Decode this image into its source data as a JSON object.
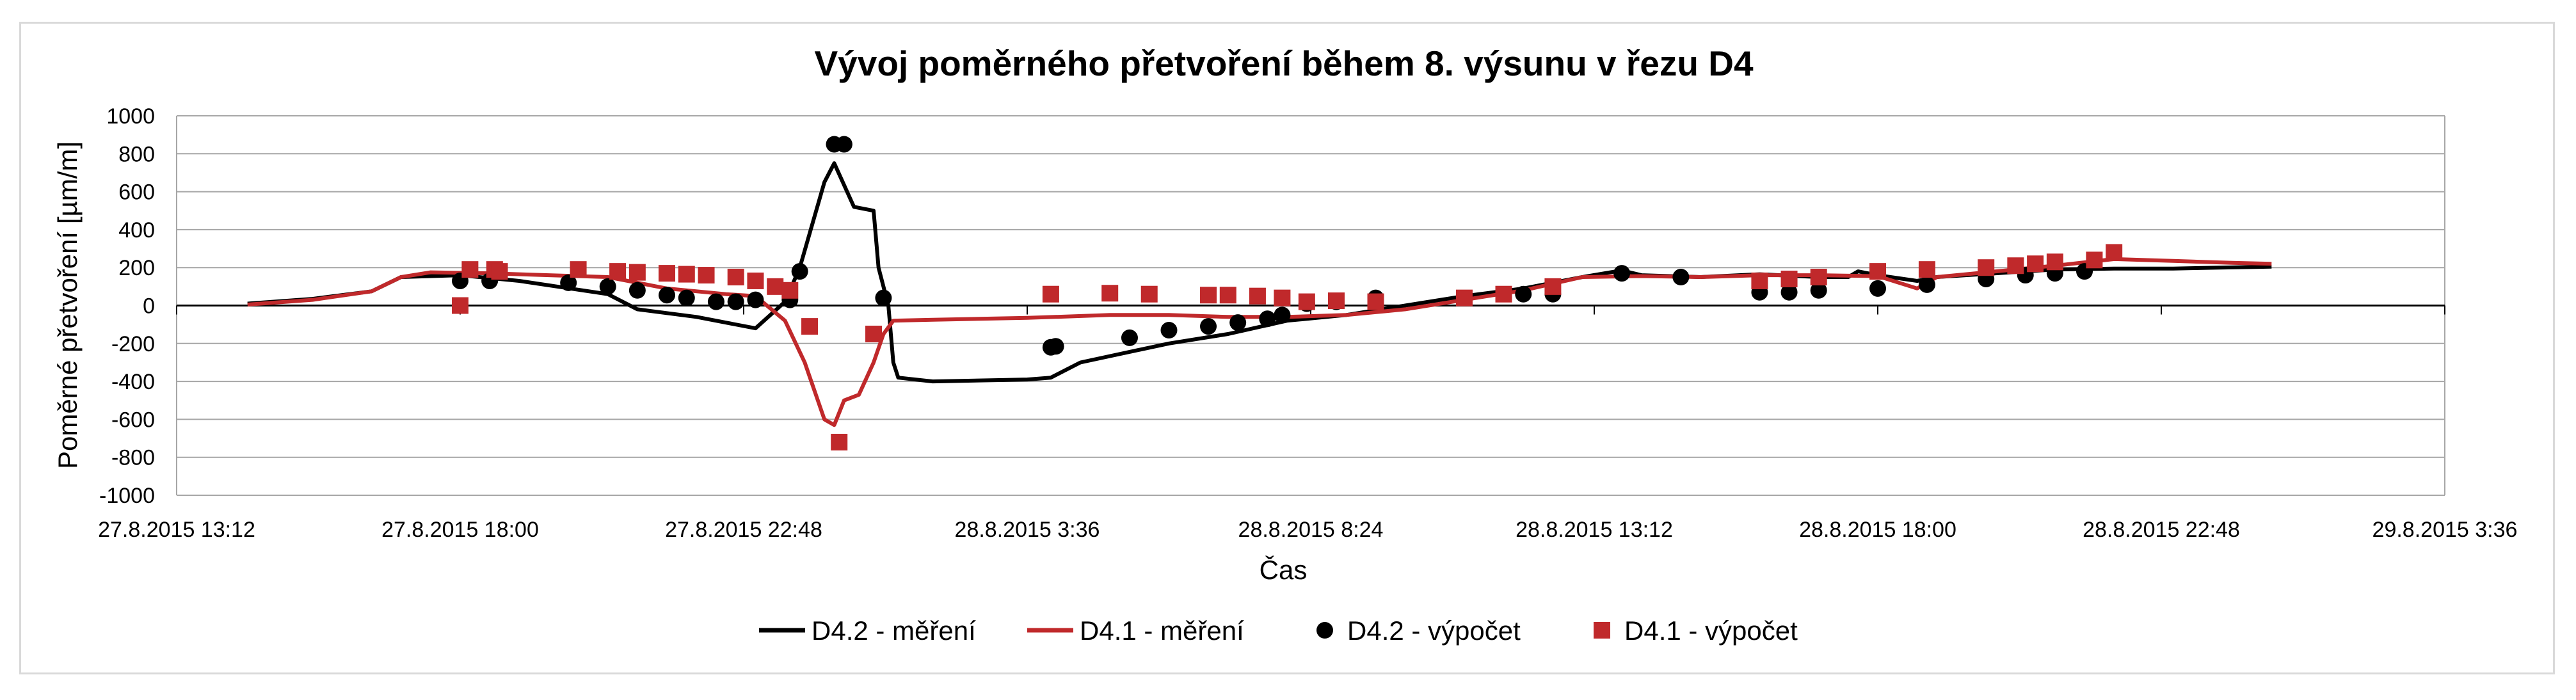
{
  "chart_data": {
    "type": "line",
    "title": "Vývoj poměrného přetvoření během 8. výsunu v řezu D4",
    "xlabel": "Čas",
    "ylabel": "Poměrné přetvoření [µm/m]",
    "x_axis": {
      "type": "time",
      "min": "27.8.2015 13:12",
      "max": "29.8.2015 3:36",
      "tick_labels": [
        "27.8.2015 13:12",
        "27.8.2015 18:00",
        "27.8.2015 22:48",
        "28.8.2015 3:36",
        "28.8.2015 8:24",
        "28.8.2015 13:12",
        "28.8.2015 18:00",
        "28.8.2015 22:48",
        "29.8.2015 3:36"
      ]
    },
    "y_axis": {
      "min": -1000,
      "max": 1000,
      "step": 200,
      "tick_labels": [
        "1000",
        "800",
        "600",
        "400",
        "200",
        "0",
        "-200",
        "-400",
        "-600",
        "-800",
        "-1000"
      ]
    },
    "grid": "horizontal",
    "legend_position": "bottom",
    "series": [
      {
        "name": "D4.2 - měření",
        "kind": "line",
        "color": "#000000",
        "points": [
          [
            "27.8.2015 14:24",
            10
          ],
          [
            "27.8.2015 15:30",
            35
          ],
          [
            "27.8.2015 16:30",
            75
          ],
          [
            "27.8.2015 17:00",
            150
          ],
          [
            "27.8.2015 18:00",
            160
          ],
          [
            "27.8.2015 19:00",
            130
          ],
          [
            "27.8.2015 20:30",
            60
          ],
          [
            "27.8.2015 21:00",
            -20
          ],
          [
            "27.8.2015 22:00",
            -60
          ],
          [
            "27.8.2015 23:00",
            -120
          ],
          [
            "27.8.2015 23:30",
            20
          ],
          [
            "27.8.2015 23:45",
            200
          ],
          [
            "28.8.2015 0:10",
            650
          ],
          [
            "28.8.2015 0:20",
            750
          ],
          [
            "28.8.2015 0:40",
            520
          ],
          [
            "28.8.2015 1:00",
            500
          ],
          [
            "28.8.2015 1:05",
            200
          ],
          [
            "28.8.2015 1:15",
            0
          ],
          [
            "28.8.2015 1:20",
            -300
          ],
          [
            "28.8.2015 1:25",
            -380
          ],
          [
            "28.8.2015 2:00",
            -400
          ],
          [
            "28.8.2015 3:36",
            -390
          ],
          [
            "28.8.2015 4:00",
            -380
          ],
          [
            "28.8.2015 4:30",
            -300
          ],
          [
            "28.8.2015 6:00",
            -200
          ],
          [
            "28.8.2015 7:00",
            -150
          ],
          [
            "28.8.2015 8:00",
            -80
          ],
          [
            "28.8.2015 9:00",
            -50
          ],
          [
            "28.8.2015 10:00",
            0
          ],
          [
            "28.8.2015 11:00",
            50
          ],
          [
            "28.8.2015 12:00",
            90
          ],
          [
            "28.8.2015 13:00",
            150
          ],
          [
            "28.8.2015 13:40",
            185
          ],
          [
            "28.8.2015 14:00",
            160
          ],
          [
            "28.8.2015 15:00",
            150
          ],
          [
            "28.8.2015 16:00",
            165
          ],
          [
            "28.8.2015 17:00",
            150
          ],
          [
            "28.8.2015 17:30",
            150
          ],
          [
            "28.8.2015 17:40",
            180
          ],
          [
            "28.8.2015 18:00",
            160
          ],
          [
            "28.8.2015 18:40",
            130
          ],
          [
            "28.8.2015 19:00",
            150
          ],
          [
            "28.8.2015 20:00",
            170
          ],
          [
            "28.8.2015 21:00",
            190
          ],
          [
            "28.8.2015 22:00",
            195
          ],
          [
            "28.8.2015 23:00",
            195
          ],
          [
            "28.8.2015 23:30",
            198
          ],
          [
            "29.8.2015 0:40",
            205
          ]
        ]
      },
      {
        "name": "D4.1 - měření",
        "kind": "line",
        "color": "#c0292b",
        "points": [
          [
            "27.8.2015 14:24",
            5
          ],
          [
            "27.8.2015 15:30",
            30
          ],
          [
            "27.8.2015 16:30",
            75
          ],
          [
            "27.8.2015 17:00",
            150
          ],
          [
            "27.8.2015 17:30",
            175
          ],
          [
            "27.8.2015 18:30",
            170
          ],
          [
            "27.8.2015 19:30",
            160
          ],
          [
            "27.8.2015 20:30",
            150
          ],
          [
            "27.8.2015 21:30",
            90
          ],
          [
            "27.8.2015 22:30",
            60
          ],
          [
            "27.8.2015 23:00",
            50
          ],
          [
            "27.8.2015 23:30",
            -80
          ],
          [
            "27.8.2015 23:50",
            -300
          ],
          [
            "28.8.2015 0:10",
            -600
          ],
          [
            "28.8.2015 0:20",
            -630
          ],
          [
            "28.8.2015 0:30",
            -500
          ],
          [
            "28.8.2015 0:45",
            -470
          ],
          [
            "28.8.2015 1:00",
            -300
          ],
          [
            "28.8.2015 1:10",
            -150
          ],
          [
            "28.8.2015 1:20",
            -80
          ],
          [
            "28.8.2015 2:00",
            -75
          ],
          [
            "28.8.2015 3:36",
            -65
          ],
          [
            "28.8.2015 5:00",
            -50
          ],
          [
            "28.8.2015 6:00",
            -50
          ],
          [
            "28.8.2015 7:00",
            -60
          ],
          [
            "28.8.2015 8:00",
            -60
          ],
          [
            "28.8.2015 9:00",
            -50
          ],
          [
            "28.8.2015 10:00",
            -20
          ],
          [
            "28.8.2015 11:00",
            30
          ],
          [
            "28.8.2015 12:00",
            80
          ],
          [
            "28.8.2015 13:00",
            150
          ],
          [
            "28.8.2015 14:00",
            155
          ],
          [
            "28.8.2015 15:00",
            150
          ],
          [
            "28.8.2015 16:00",
            160
          ],
          [
            "28.8.2015 17:00",
            160
          ],
          [
            "28.8.2015 18:00",
            155
          ],
          [
            "28.8.2015 18:40",
            90
          ],
          [
            "28.8.2015 19:00",
            150
          ],
          [
            "28.8.2015 20:00",
            180
          ],
          [
            "28.8.2015 21:00",
            210
          ],
          [
            "28.8.2015 22:00",
            245
          ],
          [
            "28.8.2015 23:00",
            235
          ],
          [
            "29.8.2015 0:00",
            225
          ],
          [
            "29.8.2015 0:40",
            220
          ]
        ]
      },
      {
        "name": "D4.2 - výpočet",
        "kind": "scatter",
        "marker": "circle",
        "color": "#000000",
        "points": [
          [
            "27.8.2015 18:00",
            130
          ],
          [
            "27.8.2015 18:30",
            130
          ],
          [
            "27.8.2015 19:50",
            120
          ],
          [
            "27.8.2015 20:30",
            100
          ],
          [
            "27.8.2015 21:00",
            80
          ],
          [
            "27.8.2015 21:30",
            55
          ],
          [
            "27.8.2015 21:50",
            40
          ],
          [
            "27.8.2015 22:20",
            20
          ],
          [
            "27.8.2015 22:40",
            20
          ],
          [
            "27.8.2015 23:00",
            30
          ],
          [
            "27.8.2015 23:35",
            30
          ],
          [
            "27.8.2015 23:45",
            180
          ],
          [
            "28.8.2015 0:20",
            850
          ],
          [
            "28.8.2015 0:30",
            850
          ],
          [
            "28.8.2015 1:10",
            40
          ],
          [
            "28.8.2015 4:00",
            -220
          ],
          [
            "28.8.2015 4:05",
            -215
          ],
          [
            "28.8.2015 5:20",
            -170
          ],
          [
            "28.8.2015 6:00",
            -130
          ],
          [
            "28.8.2015 6:40",
            -110
          ],
          [
            "28.8.2015 7:10",
            -90
          ],
          [
            "28.8.2015 7:40",
            -70
          ],
          [
            "28.8.2015 7:55",
            -50
          ],
          [
            "28.8.2015 8:20",
            10
          ],
          [
            "28.8.2015 8:50",
            20
          ],
          [
            "28.8.2015 9:30",
            40
          ],
          [
            "28.8.2015 12:00",
            60
          ],
          [
            "28.8.2015 12:30",
            60
          ],
          [
            "28.8.2015 13:40",
            170
          ],
          [
            "28.8.2015 14:40",
            150
          ],
          [
            "28.8.2015 16:00",
            70
          ],
          [
            "28.8.2015 16:30",
            70
          ],
          [
            "28.8.2015 17:00",
            80
          ],
          [
            "28.8.2015 18:00",
            90
          ],
          [
            "28.8.2015 18:50",
            110
          ],
          [
            "28.8.2015 19:50",
            140
          ],
          [
            "28.8.2015 20:30",
            160
          ],
          [
            "28.8.2015 21:00",
            170
          ],
          [
            "28.8.2015 21:30",
            180
          ]
        ]
      },
      {
        "name": "D4.1 - výpočet",
        "kind": "scatter",
        "marker": "square",
        "color": "#c0292b",
        "points": [
          [
            "27.8.2015 18:00",
            0
          ],
          [
            "27.8.2015 18:10",
            190
          ],
          [
            "27.8.2015 18:35",
            190
          ],
          [
            "27.8.2015 18:40",
            180
          ],
          [
            "27.8.2015 20:00",
            190
          ],
          [
            "27.8.2015 20:40",
            180
          ],
          [
            "27.8.2015 21:00",
            175
          ],
          [
            "27.8.2015 21:30",
            170
          ],
          [
            "27.8.2015 21:50",
            165
          ],
          [
            "27.8.2015 22:10",
            160
          ],
          [
            "27.8.2015 22:40",
            150
          ],
          [
            "27.8.2015 23:00",
            130
          ],
          [
            "27.8.2015 23:20",
            100
          ],
          [
            "27.8.2015 23:35",
            80
          ],
          [
            "27.8.2015 23:55",
            -110
          ],
          [
            "28.8.2015 0:25",
            -720
          ],
          [
            "28.8.2015 1:00",
            -150
          ],
          [
            "28.8.2015 4:00",
            60
          ],
          [
            "28.8.2015 5:00",
            65
          ],
          [
            "28.8.2015 5:40",
            60
          ],
          [
            "28.8.2015 6:40",
            55
          ],
          [
            "28.8.2015 7:00",
            55
          ],
          [
            "28.8.2015 7:30",
            50
          ],
          [
            "28.8.2015 7:55",
            40
          ],
          [
            "28.8.2015 8:20",
            20
          ],
          [
            "28.8.2015 8:50",
            25
          ],
          [
            "28.8.2015 9:30",
            20
          ],
          [
            "28.8.2015 11:00",
            40
          ],
          [
            "28.8.2015 11:40",
            60
          ],
          [
            "28.8.2015 12:30",
            100
          ],
          [
            "28.8.2015 16:00",
            130
          ],
          [
            "28.8.2015 16:30",
            140
          ],
          [
            "28.8.2015 17:00",
            150
          ],
          [
            "28.8.2015 18:00",
            180
          ],
          [
            "28.8.2015 18:50",
            190
          ],
          [
            "28.8.2015 19:50",
            200
          ],
          [
            "28.8.2015 20:20",
            210
          ],
          [
            "28.8.2015 20:40",
            220
          ],
          [
            "28.8.2015 21:00",
            230
          ],
          [
            "28.8.2015 21:40",
            240
          ],
          [
            "28.8.2015 22:00",
            280
          ]
        ]
      }
    ]
  }
}
